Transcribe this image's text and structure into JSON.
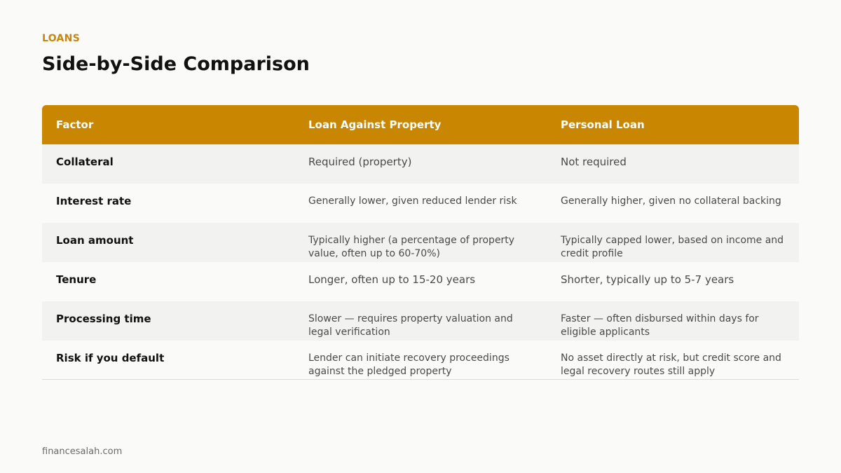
{
  "section_label": "LOANS",
  "title": "Side-by-Side Comparison",
  "table": {
    "headers": [
      "Factor",
      "Loan Against Property",
      "Personal Loan"
    ],
    "rows": [
      {
        "factor": "Collateral",
        "lap": "Required (property)",
        "personal": "Not required"
      },
      {
        "factor": "Interest rate",
        "lap": "Generally lower, given reduced lender risk",
        "personal": "Generally higher, given no collateral backing"
      },
      {
        "factor": "Loan amount",
        "lap": "Typically higher (a percentage of property value, often up to 60-70%)",
        "personal": "Typically capped lower, based on income and credit profile"
      },
      {
        "factor": "Tenure",
        "lap": "Longer, often up to 15-20 years",
        "personal": "Shorter, typically up to 5-7 years"
      },
      {
        "factor": "Processing time",
        "lap": "Slower — requires property valuation and legal verification",
        "personal": "Faster — often disbursed within days for eligible applicants"
      },
      {
        "factor": "Risk if you default",
        "lap": "Lender can initiate recovery proceedings against the pledged property",
        "personal": "No asset directly at risk, but credit score and legal recovery routes still apply"
      }
    ]
  },
  "footer": "financesalah.com",
  "colors": {
    "accent": "#c98600",
    "row_shade": "#f2f2f0",
    "background": "#fafaf8"
  }
}
